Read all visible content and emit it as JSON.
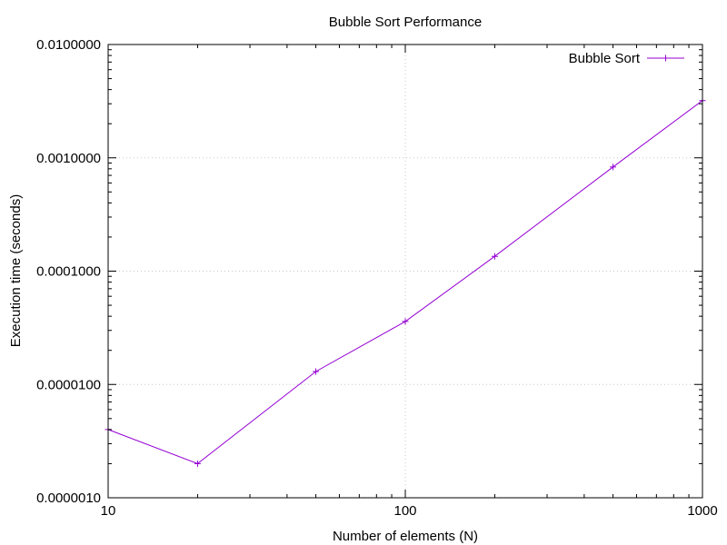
{
  "chart_data": {
    "type": "line",
    "title": "Bubble Sort Performance",
    "xlabel": "Number of elements (N)",
    "ylabel": "Execution time (seconds)",
    "xscale": "log",
    "yscale": "log",
    "xlim": [
      10,
      1000
    ],
    "ylim": [
      1e-06,
      0.01
    ],
    "xticks": [
      10,
      100,
      1000
    ],
    "xtick_labels": [
      "10",
      "100",
      "1000"
    ],
    "yticks": [
      1e-06,
      1e-05,
      0.0001,
      0.001,
      0.01
    ],
    "ytick_labels": [
      "0.0000010",
      "0.0000100",
      "0.0001000",
      "0.0010000",
      "0.0100000"
    ],
    "grid": true,
    "legend_position": "top-right",
    "series": [
      {
        "name": "Bubble Sort",
        "color": "#9400d3",
        "marker": "plus",
        "x": [
          10,
          20,
          50,
          100,
          200,
          500,
          1000
        ],
        "y": [
          4e-06,
          2e-06,
          1.3e-05,
          3.6e-05,
          0.000135,
          0.00083,
          0.0032
        ]
      }
    ]
  }
}
